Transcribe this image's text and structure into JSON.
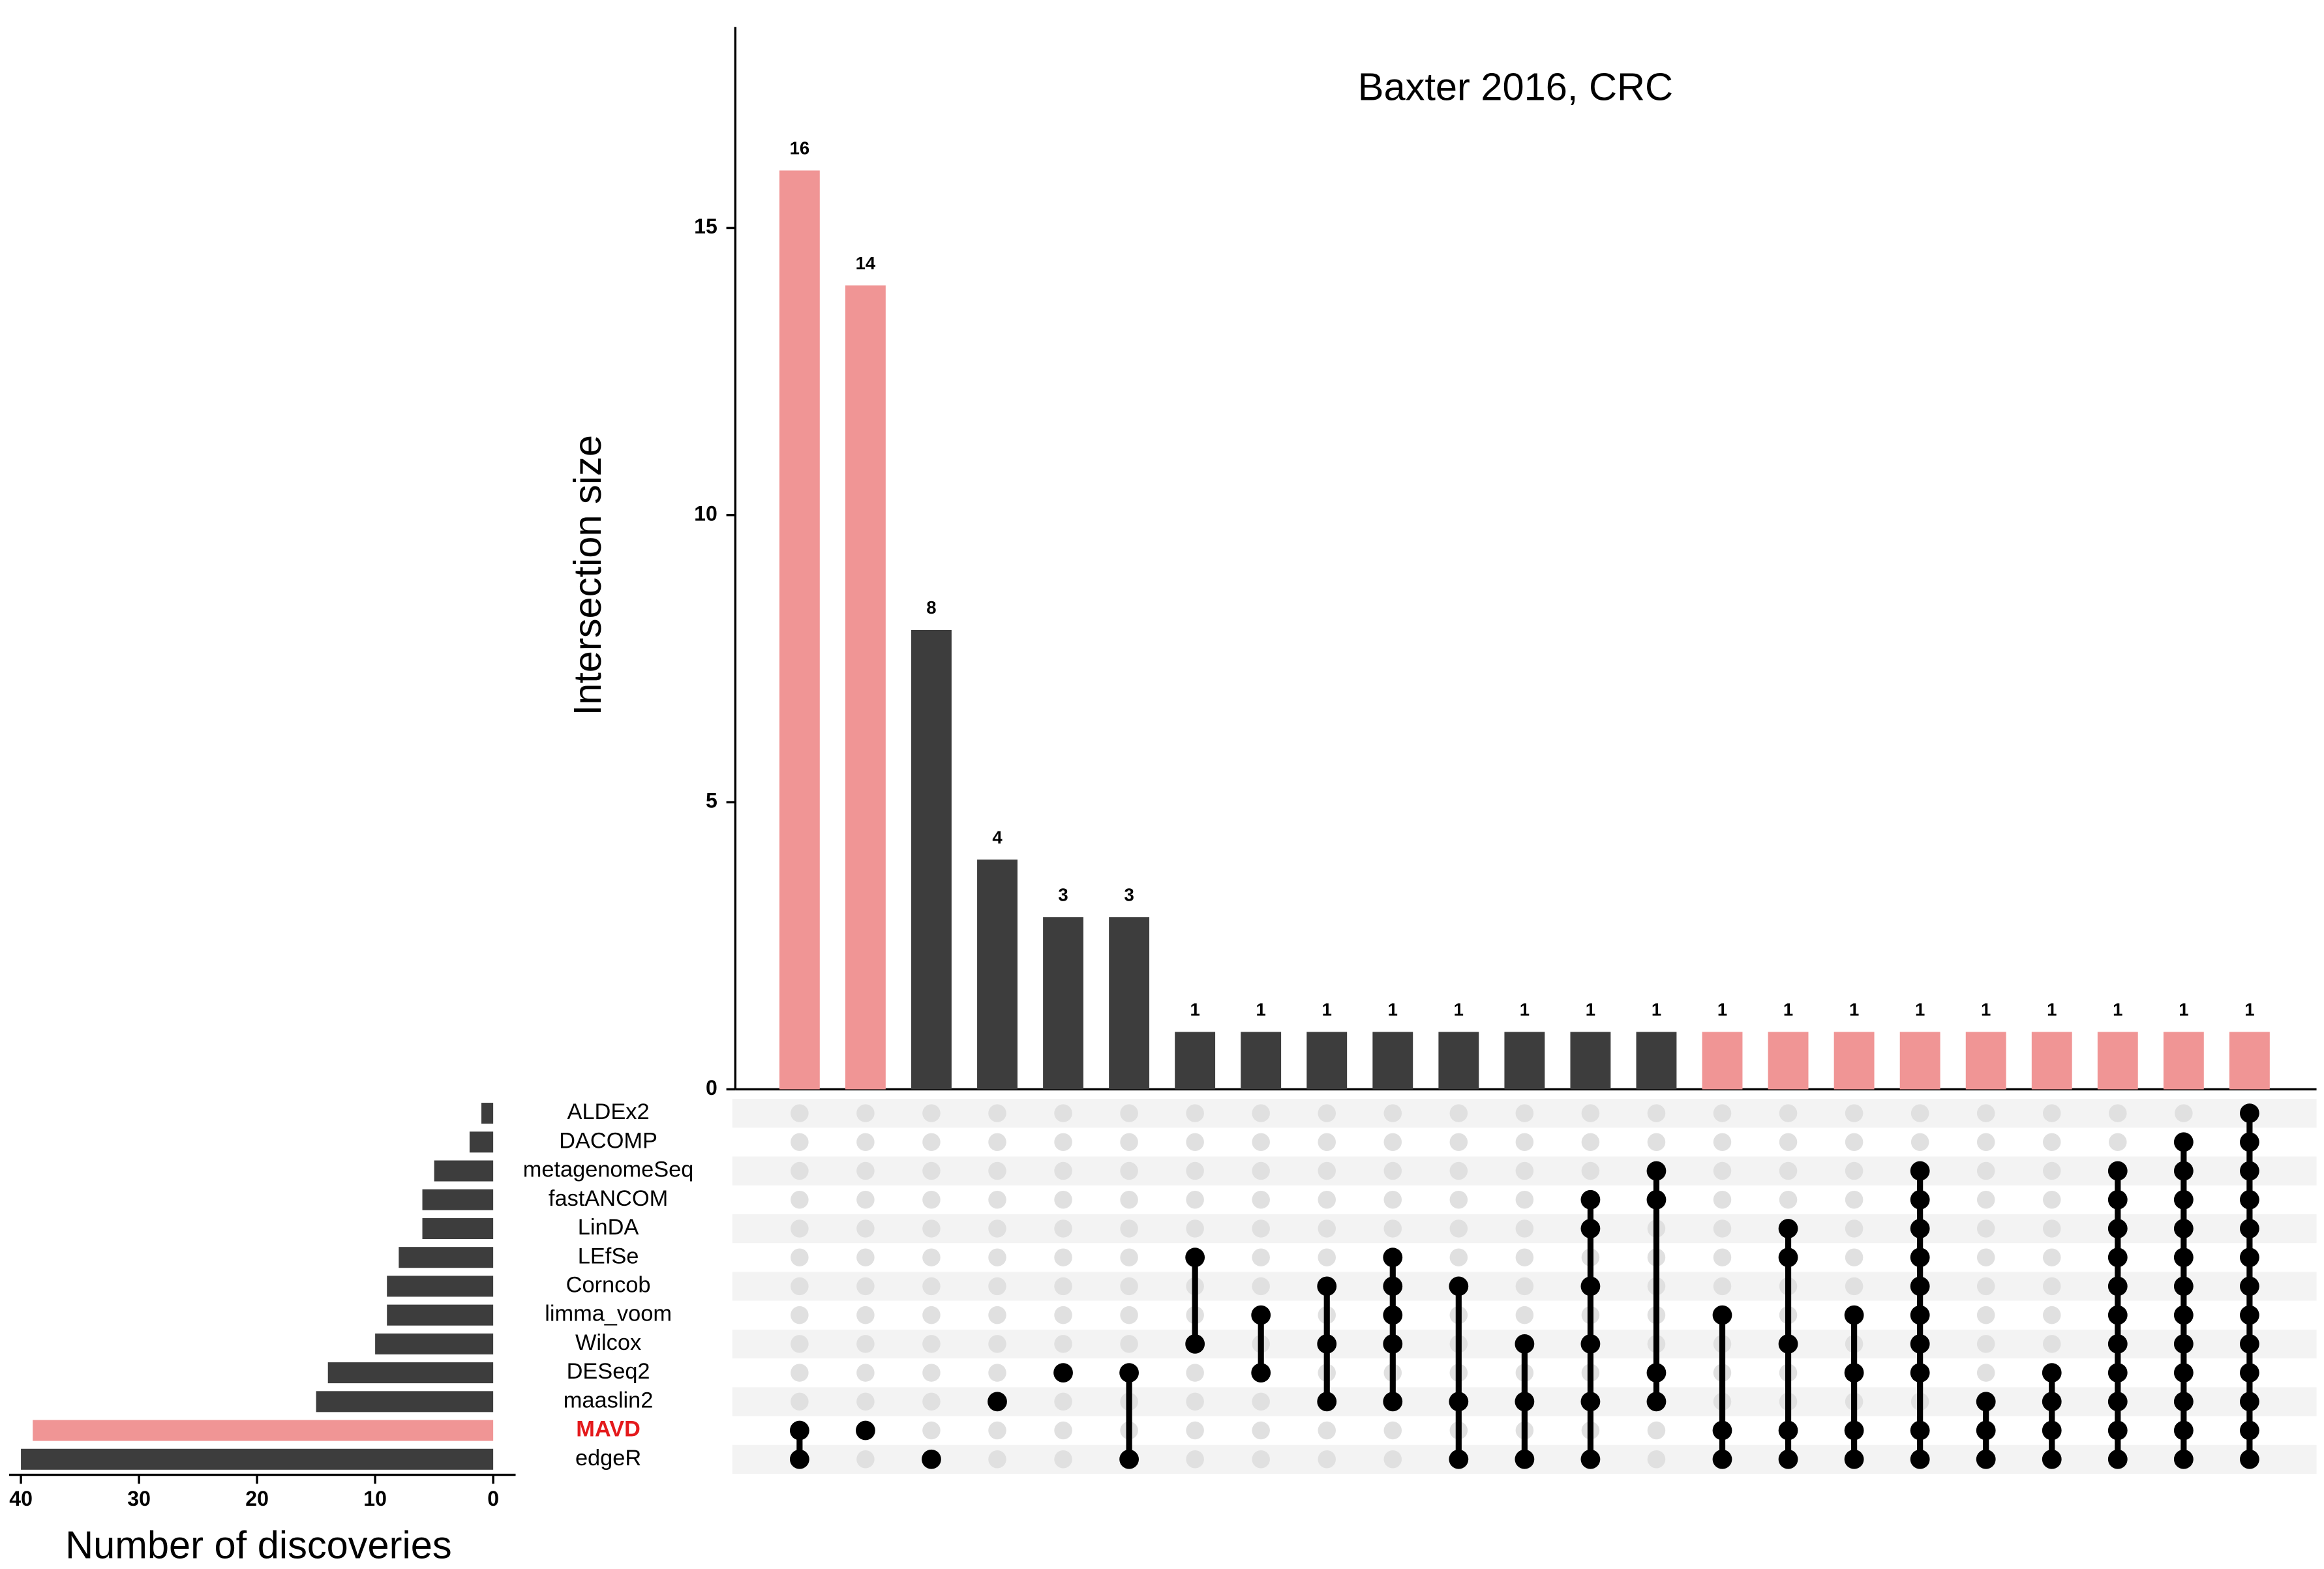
{
  "chart_data": {
    "type": "upset",
    "title": "Baxter 2016, CRC",
    "ylabel": "Intersection size",
    "xlabel": "Number of discoveries",
    "ylim": [
      0,
      18.5
    ],
    "yticks": [
      0,
      5,
      10,
      15
    ],
    "xlim": [
      0,
      41
    ],
    "xticks": [
      0,
      10,
      20,
      30,
      40
    ],
    "sets": [
      {
        "name": "ALDEx2",
        "size": 1,
        "color": "#3d3d3d",
        "label_color": "#000000"
      },
      {
        "name": "DACOMP",
        "size": 2,
        "color": "#3d3d3d",
        "label_color": "#000000"
      },
      {
        "name": "metagenomeSeq",
        "size": 5,
        "color": "#3d3d3d",
        "label_color": "#000000"
      },
      {
        "name": "fastANCOM",
        "size": 6,
        "color": "#3d3d3d",
        "label_color": "#000000"
      },
      {
        "name": "LinDA",
        "size": 6,
        "color": "#3d3d3d",
        "label_color": "#000000"
      },
      {
        "name": "LEfSe",
        "size": 8,
        "color": "#3d3d3d",
        "label_color": "#000000"
      },
      {
        "name": "Corncob",
        "size": 9,
        "color": "#3d3d3d",
        "label_color": "#000000"
      },
      {
        "name": "limma_voom",
        "size": 9,
        "color": "#3d3d3d",
        "label_color": "#000000"
      },
      {
        "name": "Wilcox",
        "size": 10,
        "color": "#3d3d3d",
        "label_color": "#000000"
      },
      {
        "name": "DESeq2",
        "size": 14,
        "color": "#3d3d3d",
        "label_color": "#000000"
      },
      {
        "name": "maaslin2",
        "size": 15,
        "color": "#3d3d3d",
        "label_color": "#000000"
      },
      {
        "name": "MAVD",
        "size": 39,
        "color": "#f09595",
        "label_color": "#e41a1c"
      },
      {
        "name": "edgeR",
        "size": 40,
        "color": "#3d3d3d",
        "label_color": "#000000"
      }
    ],
    "intersections": [
      {
        "size": 16,
        "color": "#f09595",
        "members": [
          11,
          12
        ]
      },
      {
        "size": 14,
        "color": "#f09595",
        "members": [
          11
        ]
      },
      {
        "size": 8,
        "color": "#3d3d3d",
        "members": [
          12
        ]
      },
      {
        "size": 4,
        "color": "#3d3d3d",
        "members": [
          10
        ]
      },
      {
        "size": 3,
        "color": "#3d3d3d",
        "members": [
          9
        ]
      },
      {
        "size": 3,
        "color": "#3d3d3d",
        "members": [
          9,
          12
        ]
      },
      {
        "size": 1,
        "color": "#3d3d3d",
        "members": [
          5,
          8
        ]
      },
      {
        "size": 1,
        "color": "#3d3d3d",
        "members": [
          7,
          9
        ]
      },
      {
        "size": 1,
        "color": "#3d3d3d",
        "members": [
          6,
          8,
          10
        ]
      },
      {
        "size": 1,
        "color": "#3d3d3d",
        "members": [
          5,
          6,
          7,
          8,
          10
        ]
      },
      {
        "size": 1,
        "color": "#3d3d3d",
        "members": [
          6,
          10,
          12
        ]
      },
      {
        "size": 1,
        "color": "#3d3d3d",
        "members": [
          8,
          10,
          12
        ]
      },
      {
        "size": 1,
        "color": "#3d3d3d",
        "members": [
          3,
          4,
          6,
          8,
          10,
          12
        ]
      },
      {
        "size": 1,
        "color": "#3d3d3d",
        "members": [
          2,
          3,
          9,
          10
        ]
      },
      {
        "size": 1,
        "color": "#f09595",
        "members": [
          7,
          11,
          12
        ]
      },
      {
        "size": 1,
        "color": "#f09595",
        "members": [
          4,
          5,
          8,
          11,
          12
        ]
      },
      {
        "size": 1,
        "color": "#f09595",
        "members": [
          7,
          9,
          11,
          12
        ]
      },
      {
        "size": 1,
        "color": "#f09595",
        "members": [
          2,
          3,
          4,
          5,
          6,
          7,
          8,
          9,
          11,
          12
        ]
      },
      {
        "size": 1,
        "color": "#f09595",
        "members": [
          10,
          11,
          12
        ]
      },
      {
        "size": 1,
        "color": "#f09595",
        "members": [
          9,
          10,
          11,
          12
        ]
      },
      {
        "size": 1,
        "color": "#f09595",
        "members": [
          2,
          3,
          4,
          5,
          6,
          7,
          8,
          9,
          10,
          11,
          12
        ]
      },
      {
        "size": 1,
        "color": "#f09595",
        "members": [
          1,
          2,
          3,
          4,
          5,
          6,
          7,
          8,
          9,
          10,
          11,
          12
        ]
      },
      {
        "size": 1,
        "color": "#f09595",
        "members": [
          0,
          1,
          2,
          3,
          4,
          5,
          6,
          7,
          8,
          9,
          10,
          11,
          12
        ]
      }
    ]
  }
}
